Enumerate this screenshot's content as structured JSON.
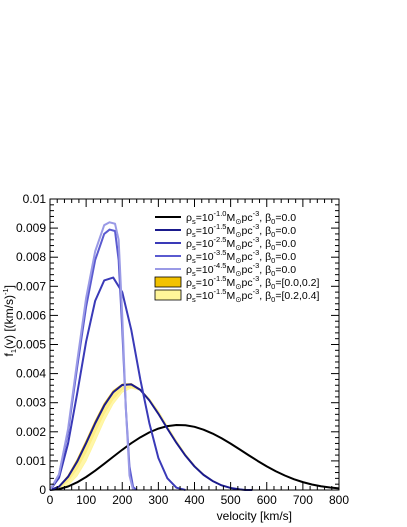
{
  "chart_data": {
    "type": "line",
    "xlabel": "velocity [km/s]",
    "ylabel": "f(v) [(km/s)-1]",
    "ylabel_parts": {
      "main": "f",
      "sub": "1",
      "mid": "(v) [(km/s)",
      "sup": "-1",
      "end": "]"
    },
    "xlim": [
      0,
      800
    ],
    "ylim": [
      0,
      0.01
    ],
    "x_ticks": [
      0,
      100,
      200,
      300,
      400,
      500,
      600,
      700,
      800
    ],
    "x_tick_labels": [
      "0",
      "100",
      "200",
      "300",
      "400",
      "500",
      "600",
      "700",
      "800"
    ],
    "y_ticks": [
      0,
      0.001,
      0.002,
      0.003,
      0.004,
      0.005,
      0.006,
      0.007,
      0.008,
      0.009,
      0.01
    ],
    "y_tick_labels": [
      "0",
      "0.001",
      "0.002",
      "0.003",
      "0.004",
      "0.005",
      "0.006",
      "0.007",
      "0.008",
      "0.009",
      "0.01"
    ],
    "grid": false,
    "legend_position": "top-right",
    "series": [
      {
        "kind": "line",
        "color": "#000000",
        "legend": {
          "rho_exp": "-1.0",
          "beta": "=0.0"
        },
        "x": [
          0,
          25,
          50,
          75,
          100,
          125,
          150,
          175,
          200,
          225,
          250,
          275,
          300,
          325,
          350,
          375,
          400,
          425,
          450,
          475,
          500,
          525,
          550,
          575,
          600,
          625,
          650,
          675,
          700,
          725,
          750,
          775,
          800
        ],
        "y": [
          0,
          3.1e-05,
          0.000121,
          0.000263,
          0.000447,
          0.000663,
          0.000899,
          0.001143,
          0.001383,
          0.001609,
          0.00181,
          0.00198,
          0.00211,
          0.002196,
          0.002235,
          0.002226,
          0.002171,
          0.002074,
          0.00194,
          0.001777,
          0.001593,
          0.001396,
          0.001195,
          0.000998,
          0.000813,
          0.000645,
          0.000498,
          0.000373,
          0.000271,
          0.00019,
          0.00013,
          8.5e-05,
          5.4e-05
        ]
      },
      {
        "kind": "line",
        "color": "#1a1a8c",
        "legend": {
          "rho_exp": "-1.5",
          "beta": "=0.0"
        },
        "x": [
          0,
          25,
          50,
          75,
          100,
          125,
          150,
          175,
          200,
          225,
          250,
          275,
          300,
          325,
          350,
          375,
          400,
          425,
          450,
          475,
          500,
          525,
          540,
          560
        ],
        "y": [
          0,
          0.000116,
          0.000452,
          0.00097,
          0.00161,
          0.00229,
          0.0029,
          0.00336,
          0.00361,
          0.00363,
          0.00344,
          0.00308,
          0.00262,
          0.00211,
          0.00162,
          0.00118,
          0.00081,
          0.00052,
          0.00031,
          0.00016,
          7e-05,
          2e-05,
          0,
          0
        ]
      },
      {
        "kind": "line",
        "color": "#3a3ab8",
        "legend": {
          "rho_exp": "-2.5",
          "beta": "=0.0"
        },
        "x": [
          0,
          25,
          50,
          75,
          100,
          125,
          150,
          175,
          200,
          225,
          250,
          275,
          300,
          325,
          350,
          375
        ],
        "y": [
          0,
          0.00042,
          0.0016,
          0.0033,
          0.0051,
          0.0065,
          0.0072,
          0.0073,
          0.0068,
          0.0055,
          0.0038,
          0.0023,
          0.0011,
          0.0004,
          8e-05,
          0
        ]
      },
      {
        "kind": "line",
        "color": "#5a5ad0",
        "legend": {
          "rho_exp": "-3.5",
          "beta": "=0.0"
        },
        "x": [
          0,
          25,
          50,
          75,
          100,
          125,
          150,
          165,
          180,
          190,
          200,
          210,
          220,
          230,
          240
        ],
        "y": [
          0,
          0.00052,
          0.002,
          0.0042,
          0.0063,
          0.0079,
          0.0088,
          0.00895,
          0.0089,
          0.0079,
          0.0055,
          0.0028,
          0.0008,
          0.0001,
          0
        ]
      },
      {
        "kind": "line",
        "color": "#9a9ae6",
        "legend": {
          "rho_exp": "-4.5",
          "beta": "=0.0"
        },
        "x": [
          0,
          25,
          50,
          75,
          100,
          125,
          150,
          165,
          180,
          190,
          200,
          210,
          220,
          230
        ],
        "y": [
          0,
          0.00054,
          0.0021,
          0.0044,
          0.0066,
          0.0082,
          0.0091,
          0.0092,
          0.00915,
          0.0086,
          0.006,
          0.0028,
          0.0005,
          0
        ]
      },
      {
        "kind": "band",
        "color": "#f2c200",
        "legend": {
          "rho_exp": "-1.5",
          "beta": "=[0.0,0.2]"
        },
        "x": [
          0,
          25,
          50,
          75,
          100,
          125,
          150,
          175,
          200,
          225,
          250,
          275,
          300,
          325,
          350,
          375,
          400,
          425,
          450,
          475,
          500,
          525
        ],
        "y_low": [
          0,
          7e-05,
          0.0003,
          0.00072,
          0.0013,
          0.00198,
          0.00262,
          0.00312,
          0.00345,
          0.00355,
          0.00345,
          0.00314,
          0.0027,
          0.00218,
          0.00168,
          0.00122,
          0.00084,
          0.00054,
          0.00032,
          0.00017,
          8e-05,
          0
        ],
        "y_high": [
          0,
          0.00013,
          0.0005,
          0.00105,
          0.0017,
          0.00238,
          0.00298,
          0.00342,
          0.00364,
          0.00366,
          0.00347,
          0.00311,
          0.00264,
          0.00212,
          0.00163,
          0.00119,
          0.00082,
          0.00053,
          0.00032,
          0.00017,
          8e-05,
          0
        ]
      },
      {
        "kind": "band",
        "color": "#fff599",
        "legend": {
          "rho_exp": "-1.5",
          "beta": "=[0.2,0.4]"
        },
        "x": [
          0,
          25,
          50,
          75,
          100,
          125,
          150,
          175,
          200,
          225,
          250,
          275,
          300,
          325,
          350,
          375,
          400,
          425,
          450,
          475,
          500,
          525
        ],
        "y_low": [
          0,
          3e-05,
          0.00016,
          0.00048,
          0.001,
          0.00168,
          0.00238,
          0.00296,
          0.00336,
          0.0035,
          0.00342,
          0.00314,
          0.00272,
          0.0022,
          0.0017,
          0.00124,
          0.00085,
          0.00055,
          0.00033,
          0.00017,
          8e-05,
          0
        ],
        "y_high": [
          0,
          0.0001,
          0.00042,
          0.00092,
          0.00155,
          0.00222,
          0.00284,
          0.0033,
          0.00357,
          0.00362,
          0.00345,
          0.0031,
          0.00264,
          0.00213,
          0.00164,
          0.0012,
          0.00083,
          0.00054,
          0.00032,
          0.00017,
          8e-05,
          0
        ]
      }
    ]
  }
}
